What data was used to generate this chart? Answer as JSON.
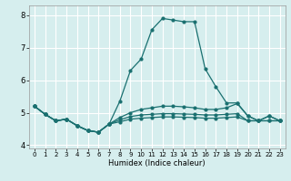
{
  "xlabel": "Humidex (Indice chaleur)",
  "xlim": [
    -0.5,
    23.5
  ],
  "ylim": [
    3.9,
    8.3
  ],
  "yticks": [
    4,
    5,
    6,
    7,
    8
  ],
  "xticks": [
    0,
    1,
    2,
    3,
    4,
    5,
    6,
    7,
    8,
    9,
    10,
    11,
    12,
    13,
    14,
    15,
    16,
    17,
    18,
    19,
    20,
    21,
    22,
    23
  ],
  "bg_color": "#d6eeee",
  "grid_color": "#ffffff",
  "line_color": "#1a7070",
  "line1_x": [
    0,
    1,
    2,
    3,
    4,
    5,
    6,
    7,
    8,
    9,
    10,
    11,
    12,
    13,
    14,
    15,
    16,
    17,
    18,
    19,
    20,
    21,
    22,
    23
  ],
  "line1_y": [
    5.2,
    4.95,
    4.75,
    4.8,
    4.6,
    4.45,
    4.4,
    4.65,
    5.35,
    6.3,
    6.65,
    7.55,
    7.9,
    7.85,
    7.8,
    7.8,
    6.35,
    5.8,
    5.3,
    5.3,
    4.9,
    4.75,
    4.9,
    4.75
  ],
  "line2_x": [
    0,
    1,
    2,
    3,
    4,
    5,
    6,
    7,
    8,
    9,
    10,
    11,
    12,
    13,
    14,
    15,
    16,
    17,
    18,
    19,
    20,
    21,
    22,
    23
  ],
  "line2_y": [
    5.2,
    4.95,
    4.75,
    4.8,
    4.6,
    4.45,
    4.4,
    4.65,
    4.85,
    5.0,
    5.1,
    5.15,
    5.2,
    5.2,
    5.18,
    5.15,
    5.1,
    5.1,
    5.15,
    5.28,
    4.9,
    4.75,
    4.9,
    4.75
  ],
  "line3_x": [
    0,
    1,
    2,
    3,
    4,
    5,
    6,
    7,
    8,
    9,
    10,
    11,
    12,
    13,
    14,
    15,
    16,
    17,
    18,
    19,
    20,
    21,
    22,
    23
  ],
  "line3_y": [
    5.2,
    4.95,
    4.75,
    4.8,
    4.6,
    4.45,
    4.4,
    4.65,
    4.78,
    4.88,
    4.93,
    4.95,
    4.97,
    4.97,
    4.96,
    4.95,
    4.93,
    4.93,
    4.95,
    4.97,
    4.75,
    4.75,
    4.75,
    4.75
  ],
  "line4_x": [
    0,
    1,
    2,
    3,
    4,
    5,
    6,
    7,
    8,
    9,
    10,
    11,
    12,
    13,
    14,
    15,
    16,
    17,
    18,
    19,
    20,
    21,
    22,
    23
  ],
  "line4_y": [
    5.2,
    4.95,
    4.75,
    4.8,
    4.6,
    4.45,
    4.4,
    4.65,
    4.72,
    4.8,
    4.83,
    4.85,
    4.87,
    4.87,
    4.86,
    4.85,
    4.83,
    4.83,
    4.85,
    4.87,
    4.75,
    4.75,
    4.75,
    4.75
  ]
}
